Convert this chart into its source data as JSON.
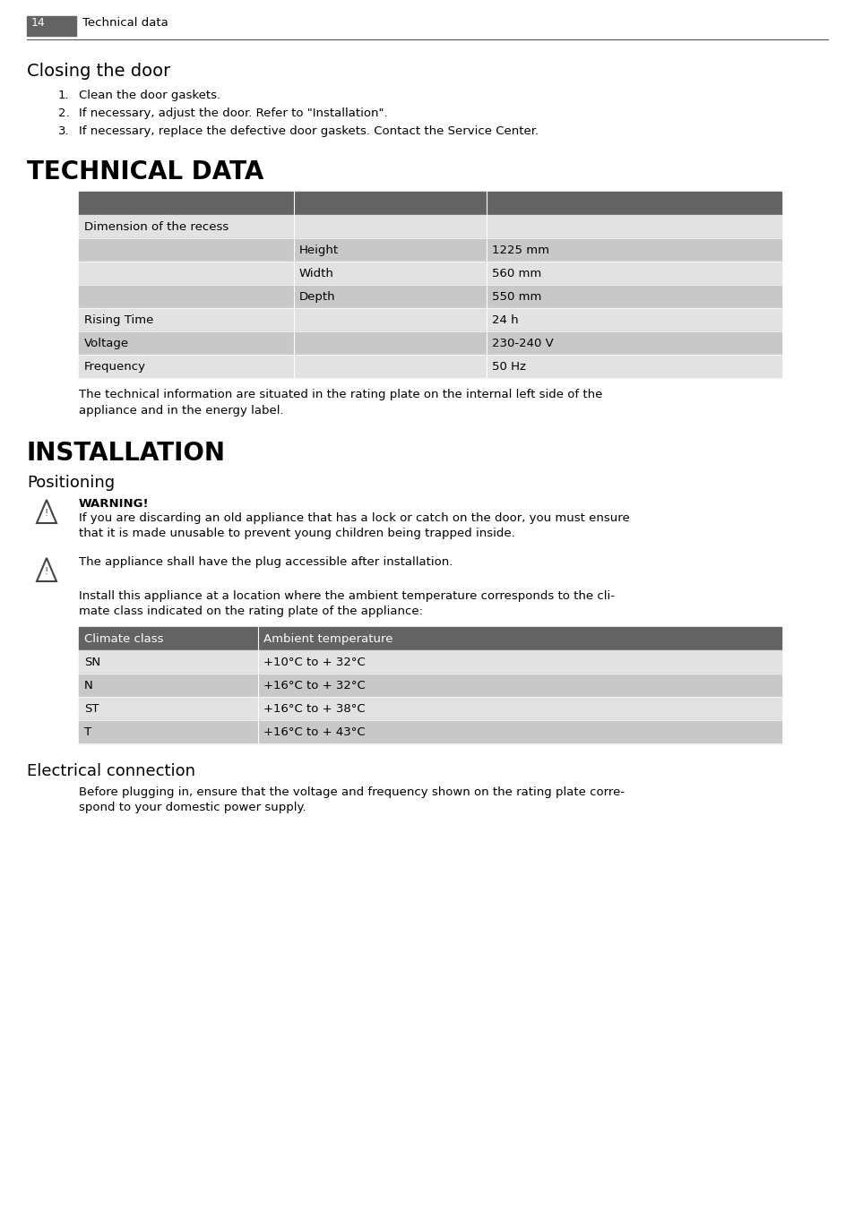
{
  "page_num": "14",
  "page_header": "Technical data",
  "bg_color": "#ffffff",
  "text_color": "#000000",
  "section1_title": "Closing the door",
  "section1_items": [
    "Clean the door gaskets.",
    "If necessary, adjust the door. Refer to \"Installation\".",
    "If necessary, replace the defective door gaskets. Contact the Service Center."
  ],
  "section2_title": "TECHNICAL DATA",
  "tech_table_header_color": "#636363",
  "tech_table_rows": [
    {
      "col1": "Dimension of the recess",
      "col2": "",
      "col3": "",
      "bg": "#e2e2e2"
    },
    {
      "col1": "",
      "col2": "Height",
      "col3": "1225 mm",
      "bg": "#c8c8c8"
    },
    {
      "col1": "",
      "col2": "Width",
      "col3": "560 mm",
      "bg": "#e2e2e2"
    },
    {
      "col1": "",
      "col2": "Depth",
      "col3": "550 mm",
      "bg": "#c8c8c8"
    },
    {
      "col1": "Rising Time",
      "col2": "",
      "col3": "24 h",
      "bg": "#e2e2e2"
    },
    {
      "col1": "Voltage",
      "col2": "",
      "col3": "230-240 V",
      "bg": "#c8c8c8"
    },
    {
      "col1": "Frequency",
      "col2": "",
      "col3": "50 Hz",
      "bg": "#e2e2e2"
    }
  ],
  "tech_note_line1": "The technical information are situated in the rating plate on the internal left side of the",
  "tech_note_line2": "appliance and in the energy label.",
  "section3_title": "INSTALLATION",
  "section3_sub": "Positioning",
  "warning1_bold": "WARNING!",
  "warning1_line1": "If you are discarding an old appliance that has a lock or catch on the door, you must ensure",
  "warning1_line2": "that it is made unusable to prevent young children being trapped inside.",
  "warning2_text": "The appliance shall have the plug accessible after installation.",
  "install_line1": "Install this appliance at a location where the ambient temperature corresponds to the cli-",
  "install_line2": "mate class indicated on the rating plate of the appliance:",
  "climate_table_header_color": "#636363",
  "climate_header": [
    "Climate class",
    "Ambient temperature"
  ],
  "climate_rows": [
    {
      "col1": "SN",
      "col2": "+10°C to + 32°C",
      "bg": "#e2e2e2"
    },
    {
      "col1": "N",
      "col2": "+16°C to + 32°C",
      "bg": "#c8c8c8"
    },
    {
      "col1": "ST",
      "col2": "+16°C to + 38°C",
      "bg": "#e2e2e2"
    },
    {
      "col1": "T",
      "col2": "+16°C to + 43°C",
      "bg": "#c8c8c8"
    }
  ],
  "section4_sub": "Electrical connection",
  "elec_line1": "Before plugging in, ensure that the voltage and frequency shown on the rating plate corre-",
  "elec_line2": "spond to your domestic power supply."
}
